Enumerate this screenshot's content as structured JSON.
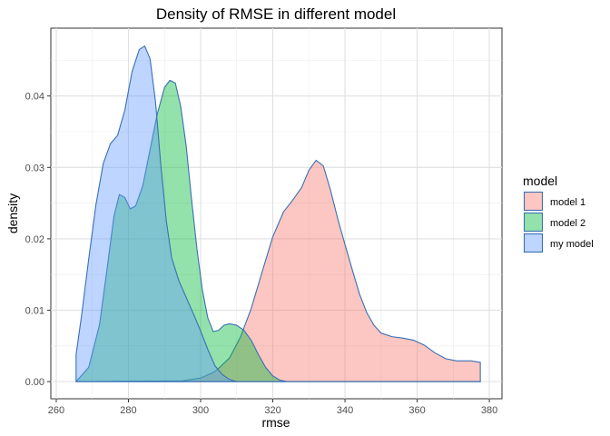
{
  "chart_data": {
    "type": "area",
    "title": "Density of RMSE in different model",
    "xlabel": "rmse",
    "ylabel": "density",
    "xlim": [
      258.5,
      383.5
    ],
    "ylim": [
      -0.0024,
      0.0495
    ],
    "x_ticks": [
      260,
      280,
      300,
      320,
      340,
      360,
      380
    ],
    "y_ticks": [
      0.0,
      0.01,
      0.02,
      0.03,
      0.04
    ],
    "y_tick_labels": [
      "0.00",
      "0.01",
      "0.02",
      "0.03",
      "0.04"
    ],
    "grid": true,
    "legend_position": "right",
    "legend": {
      "title": "model",
      "entries": [
        {
          "name": "model 1",
          "fill": "#f8766d"
        },
        {
          "name": "model 2",
          "fill": "#00ba38"
        },
        {
          "name": "my model",
          "fill": "#619cff"
        }
      ]
    },
    "outline_color": "#3a6fb5",
    "series": [
      {
        "name": "model 1",
        "color": "#f8766d",
        "points": [
          [
            265.5,
            0
          ],
          [
            295,
            0.0001
          ],
          [
            300,
            0.0005
          ],
          [
            304,
            0.0014
          ],
          [
            308,
            0.0033
          ],
          [
            311,
            0.0062
          ],
          [
            314,
            0.0102
          ],
          [
            317,
            0.0153
          ],
          [
            320,
            0.0203
          ],
          [
            323,
            0.0238
          ],
          [
            325.5,
            0.0254
          ],
          [
            328,
            0.0272
          ],
          [
            330,
            0.0296
          ],
          [
            332,
            0.031
          ],
          [
            334,
            0.0302
          ],
          [
            336,
            0.0268
          ],
          [
            338,
            0.0228
          ],
          [
            340,
            0.0192
          ],
          [
            342,
            0.0157
          ],
          [
            344,
            0.0123
          ],
          [
            346,
            0.0097
          ],
          [
            348,
            0.0079
          ],
          [
            350,
            0.0068
          ],
          [
            353,
            0.0063
          ],
          [
            356,
            0.0061
          ],
          [
            359,
            0.0058
          ],
          [
            362,
            0.0051
          ],
          [
            365,
            0.004
          ],
          [
            368,
            0.0032
          ],
          [
            371,
            0.0029
          ],
          [
            375,
            0.0029
          ],
          [
            377.5,
            0.0027
          ]
        ]
      },
      {
        "name": "model 2",
        "color": "#00ba38",
        "points": [
          [
            265.5,
            0
          ],
          [
            269,
            0.002
          ],
          [
            272,
            0.008
          ],
          [
            274,
            0.0155
          ],
          [
            276,
            0.0232
          ],
          [
            277.5,
            0.0262
          ],
          [
            279,
            0.0258
          ],
          [
            280.5,
            0.0242
          ],
          [
            282,
            0.0246
          ],
          [
            284,
            0.0275
          ],
          [
            286,
            0.0325
          ],
          [
            288,
            0.0375
          ],
          [
            290,
            0.0412
          ],
          [
            291.5,
            0.0422
          ],
          [
            293,
            0.0418
          ],
          [
            294.5,
            0.0385
          ],
          [
            296,
            0.033
          ],
          [
            297.5,
            0.0255
          ],
          [
            299,
            0.0185
          ],
          [
            300.5,
            0.0128
          ],
          [
            302,
            0.0089
          ],
          [
            303.5,
            0.007
          ],
          [
            305,
            0.0072
          ],
          [
            306.5,
            0.0079
          ],
          [
            308,
            0.0081
          ],
          [
            310,
            0.0079
          ],
          [
            312,
            0.0072
          ],
          [
            314,
            0.0058
          ],
          [
            316,
            0.0038
          ],
          [
            318,
            0.002
          ],
          [
            320,
            0.0008
          ],
          [
            322,
            0.0002
          ],
          [
            324,
            0
          ],
          [
            377.5,
            0
          ]
        ]
      },
      {
        "name": "my model",
        "color": "#619cff",
        "points": [
          [
            265.5,
            0.0038
          ],
          [
            267,
            0.0092
          ],
          [
            269,
            0.0172
          ],
          [
            271,
            0.0248
          ],
          [
            273,
            0.0305
          ],
          [
            275,
            0.0333
          ],
          [
            277,
            0.0345
          ],
          [
            279,
            0.038
          ],
          [
            281,
            0.0434
          ],
          [
            283,
            0.0465
          ],
          [
            284.5,
            0.047
          ],
          [
            286,
            0.0452
          ],
          [
            287.5,
            0.0392
          ],
          [
            289,
            0.0302
          ],
          [
            290.5,
            0.0225
          ],
          [
            292,
            0.0173
          ],
          [
            294,
            0.0141
          ],
          [
            296,
            0.0118
          ],
          [
            298,
            0.0095
          ],
          [
            300,
            0.0071
          ],
          [
            302,
            0.0045
          ],
          [
            304,
            0.0022
          ],
          [
            306,
            0.001
          ],
          [
            308,
            0.0003
          ],
          [
            310,
            0
          ],
          [
            377.5,
            0
          ]
        ]
      }
    ]
  }
}
